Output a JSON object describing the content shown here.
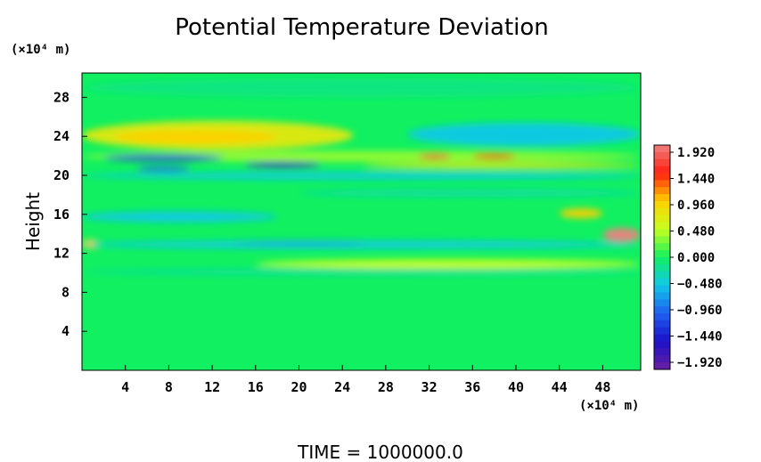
{
  "chart_data": {
    "type": "heatmap",
    "title": "Potential Temperature Deviation",
    "xlabel": "",
    "ylabel": "Height",
    "x_unit": "(×10⁴ m)",
    "y_unit": "(×10⁴ m)",
    "xlim": [
      0,
      51.5
    ],
    "ylim": [
      0,
      30.5
    ],
    "x_ticks": [
      "4",
      "8",
      "12",
      "16",
      "20",
      "24",
      "28",
      "32",
      "36",
      "40",
      "44",
      "48"
    ],
    "y_ticks": [
      "4",
      "8",
      "12",
      "16",
      "20",
      "24",
      "28"
    ],
    "colorbar": {
      "labels": [
        "1.920",
        "1.440",
        "0.960",
        "0.480",
        "0.000",
        "−0.480",
        "−0.960",
        "−1.440",
        "−1.920"
      ],
      "min": -1.92,
      "max": 1.92
    },
    "background_value": 0.0,
    "features": [
      {
        "x": [
          0,
          25
        ],
        "y": [
          22.6,
          25.6
        ],
        "value": 0.72
      },
      {
        "x": [
          3,
          18
        ],
        "y": [
          23.3,
          24.6
        ],
        "value": 0.96
      },
      {
        "x": [
          30,
          51.5
        ],
        "y": [
          23.0,
          25.4
        ],
        "value": -0.48
      },
      {
        "x": [
          0,
          51.5
        ],
        "y": [
          28.0,
          30.0
        ],
        "value": -0.12
      },
      {
        "x": [
          0,
          51.5
        ],
        "y": [
          21.4,
          22.5
        ],
        "value": 0.36
      },
      {
        "x": [
          2,
          13
        ],
        "y": [
          21.5,
          22.1
        ],
        "value": -1.2
      },
      {
        "x": [
          15,
          22
        ],
        "y": [
          20.8,
          21.4
        ],
        "value": -1.6
      },
      {
        "x": [
          5,
          10
        ],
        "y": [
          20.4,
          20.9
        ],
        "value": -0.96
      },
      {
        "x": [
          31,
          34
        ],
        "y": [
          21.7,
          22.2
        ],
        "value": 1.6
      },
      {
        "x": [
          36,
          40
        ],
        "y": [
          21.7,
          22.2
        ],
        "value": 1.4
      },
      {
        "x": [
          26,
          51.5
        ],
        "y": [
          20.7,
          21.3
        ],
        "value": 0.72
      },
      {
        "x": [
          0,
          51.5
        ],
        "y": [
          19.6,
          20.3
        ],
        "value": -0.48
      },
      {
        "x": [
          0,
          18
        ],
        "y": [
          15.2,
          16.3
        ],
        "value": -0.48
      },
      {
        "x": [
          44,
          48
        ],
        "y": [
          15.6,
          16.6
        ],
        "value": 0.96
      },
      {
        "x": [
          48,
          51.5
        ],
        "y": [
          13.2,
          14.6
        ],
        "value": 1.92
      },
      {
        "x": [
          0,
          1.5
        ],
        "y": [
          12.5,
          13.4
        ],
        "value": 0.96
      },
      {
        "x": [
          0,
          51.5
        ],
        "y": [
          12.5,
          13.3
        ],
        "value": -0.48
      },
      {
        "x": [
          14,
          26
        ],
        "y": [
          12.8,
          13.3
        ],
        "value": -0.6
      },
      {
        "x": [
          16,
          51.5
        ],
        "y": [
          10.4,
          11.4
        ],
        "value": 0.48
      },
      {
        "x": [
          0,
          51.5
        ],
        "y": [
          9.8,
          10.4
        ],
        "value": -0.24
      },
      {
        "x": [
          20,
          51.5
        ],
        "y": [
          17.8,
          18.6
        ],
        "value": -0.24
      }
    ],
    "colorscale": [
      "#6a1fa0",
      "#1a10c8",
      "#2060f0",
      "#10c8e8",
      "#10f060",
      "#c8ff20",
      "#ffd000",
      "#ff2010",
      "#f08080"
    ],
    "grid": false,
    "legend": "colorbar-right"
  },
  "footer": "TIME  =  1000000.0"
}
